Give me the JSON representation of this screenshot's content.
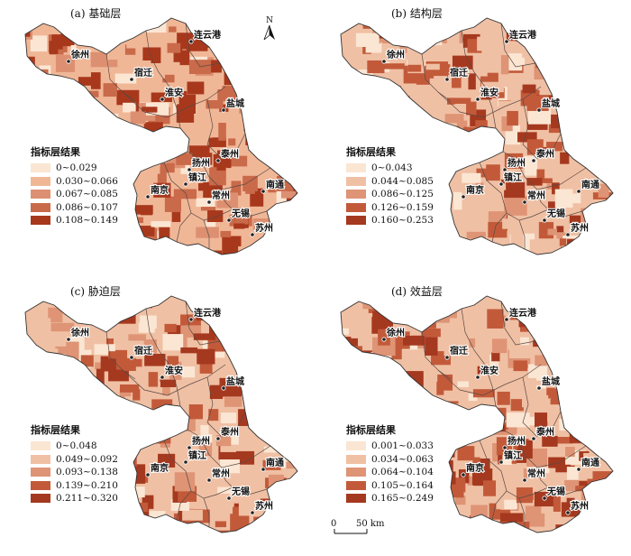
{
  "legend_title": "指标层结果",
  "cities": [
    "连云港",
    "徐州",
    "宿迁",
    "淮安",
    "盐城",
    "扬州",
    "泰州",
    "南京",
    "镇江",
    "常州",
    "南通",
    "无锡",
    "苏州"
  ],
  "north_label": "N",
  "scale": {
    "zero": "0",
    "dist": "50 km"
  },
  "panels": [
    {
      "title": "(a) 基础层",
      "classes": [
        "0~0.029",
        "0.030~0.066",
        "0.067~0.085",
        "0.086~0.107",
        "0.108~0.149"
      ],
      "colors": [
        "#fbe6d3",
        "#f0b797",
        "#dd9071",
        "#c96a4a",
        "#a8381c"
      ],
      "hot": [
        "连云港",
        "盐城",
        "南京",
        "泰州",
        "南通"
      ]
    },
    {
      "title": "(b) 结构层",
      "classes": [
        "0~0.043",
        "0.044~0.085",
        "0.086~0.125",
        "0.126~0.159",
        "0.160~0.253"
      ],
      "colors": [
        "#fbe6d3",
        "#f0c0a4",
        "#de9475",
        "#c25a3a",
        "#a5391f"
      ],
      "hot": [
        "宿迁",
        "淮安",
        "盐城",
        "扬州",
        "泰州"
      ]
    },
    {
      "title": "(c) 胁迫层",
      "classes": [
        "0~0.048",
        "0.049~0.092",
        "0.093~0.138",
        "0.139~0.210",
        "0.211~0.320"
      ],
      "colors": [
        "#fbe6d3",
        "#f0c0a4",
        "#de9475",
        "#c25a3a",
        "#a5391f"
      ],
      "hot": [
        "连云港",
        "盐城",
        "南京",
        "宿迁",
        "苏州"
      ]
    },
    {
      "title": "(d) 效益层",
      "classes": [
        "0.001~0.033",
        "0.034~0.063",
        "0.064~0.104",
        "0.105~0.164",
        "0.165~0.249"
      ],
      "colors": [
        "#fbe6d3",
        "#f0c0a4",
        "#de9475",
        "#c25a3a",
        "#a5391f"
      ],
      "hot": [
        "徐州",
        "南京",
        "苏州"
      ]
    }
  ]
}
